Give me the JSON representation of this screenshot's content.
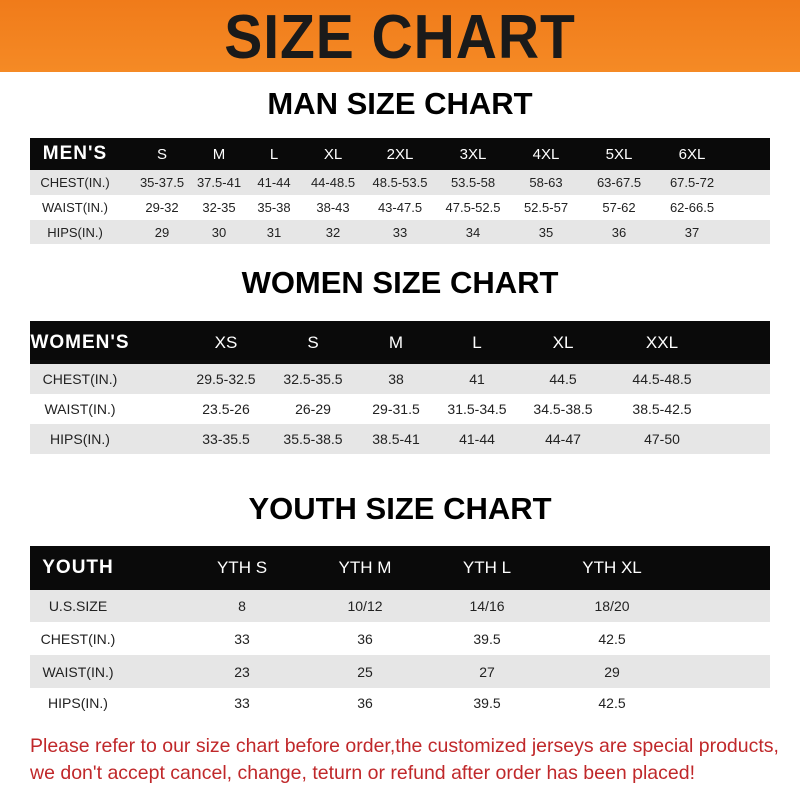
{
  "banner_title": "SIZE CHART",
  "men": {
    "title": "MAN SIZE CHART",
    "header": [
      "MEN'S",
      "S",
      "M",
      "L",
      "XL",
      "2XL",
      "3XL",
      "4XL",
      "5XL",
      "6XL"
    ],
    "rows": [
      [
        "CHEST(IN.)",
        "35-37.5",
        "37.5-41",
        "41-44",
        "44-48.5",
        "48.5-53.5",
        "53.5-58",
        "58-63",
        "63-67.5",
        "67.5-72"
      ],
      [
        "WAIST(IN.)",
        "29-32",
        "32-35",
        "35-38",
        "38-43",
        "43-47.5",
        "47.5-52.5",
        "52.5-57",
        "57-62",
        "62-66.5"
      ],
      [
        "HIPS(IN.)",
        "29",
        "30",
        "31",
        "32",
        "33",
        "34",
        "35",
        "36",
        "37"
      ]
    ]
  },
  "women": {
    "title": "WOMEN SIZE CHART",
    "header": [
      "WOMEN'S",
      "XS",
      "S",
      "M",
      "L",
      "XL",
      "XXL"
    ],
    "rows": [
      [
        "CHEST(IN.)",
        "29.5-32.5",
        "32.5-35.5",
        "38",
        "41",
        "44.5",
        "44.5-48.5"
      ],
      [
        "WAIST(IN.)",
        "23.5-26",
        "26-29",
        "29-31.5",
        "31.5-34.5",
        "34.5-38.5",
        "38.5-42.5"
      ],
      [
        "HIPS(IN.)",
        "33-35.5",
        "35.5-38.5",
        "38.5-41",
        "41-44",
        "44-47",
        "47-50"
      ]
    ]
  },
  "youth": {
    "title": "YOUTH SIZE CHART",
    "header": [
      "YOUTH",
      "YTH S",
      "YTH M",
      "YTH L",
      "YTH XL"
    ],
    "rows": [
      [
        "U.S.SIZE",
        "8",
        "10/12",
        "14/16",
        "18/20"
      ],
      [
        "CHEST(IN.)",
        "33",
        "36",
        "39.5",
        "42.5"
      ],
      [
        "WAIST(IN.)",
        "23",
        "25",
        "27",
        "29"
      ],
      [
        "HIPS(IN.)",
        "33",
        "36",
        "39.5",
        "42.5"
      ]
    ]
  },
  "note": "Please refer to our size chart before order,the customized jerseys are special products, we don't accept cancel, change, teturn or refund after order has been placed!"
}
